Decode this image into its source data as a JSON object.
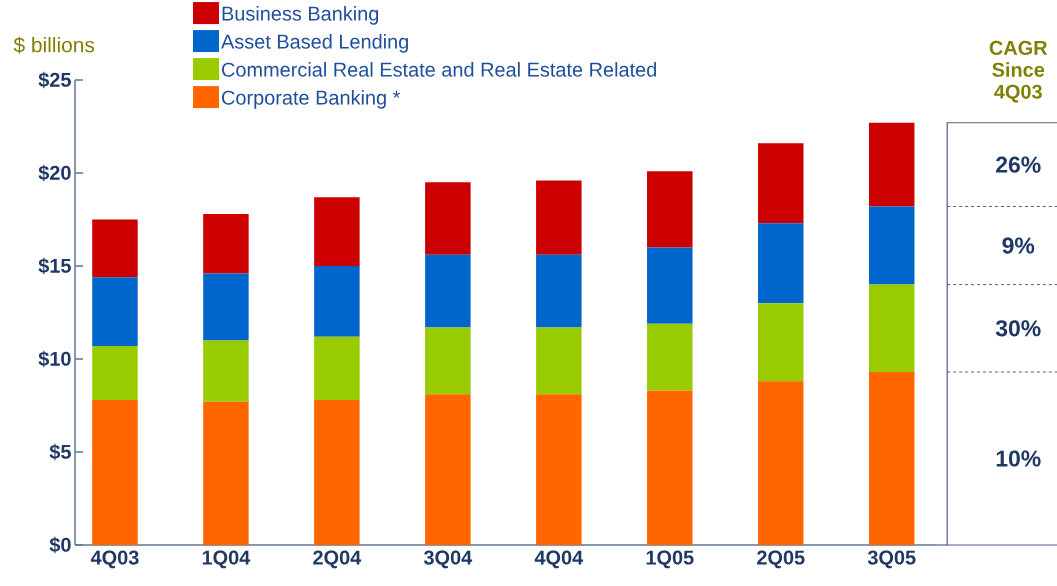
{
  "chart_data": {
    "type": "bar",
    "stacked": true,
    "ylabel": "$ billions",
    "categories": [
      "4Q03",
      "1Q04",
      "2Q04",
      "3Q04",
      "4Q04",
      "1Q05",
      "2Q05",
      "3Q05"
    ],
    "series": [
      {
        "name": "Corporate Banking *",
        "color": "#ff6600",
        "values": [
          7.8,
          7.7,
          7.8,
          8.1,
          8.1,
          8.3,
          8.8,
          9.3
        ]
      },
      {
        "name": "Commercial Real Estate and Real Estate Related",
        "color": "#99cc00",
        "values": [
          2.9,
          3.3,
          3.4,
          3.6,
          3.6,
          3.6,
          4.2,
          4.7
        ]
      },
      {
        "name": "Asset Based Lending",
        "color": "#0066cc",
        "values": [
          3.7,
          3.6,
          3.8,
          3.9,
          3.9,
          4.1,
          4.3,
          4.2
        ]
      },
      {
        "name": "Business Banking",
        "color": "#cc0000",
        "values": [
          3.1,
          3.2,
          3.7,
          3.9,
          4.0,
          4.1,
          4.3,
          4.5
        ]
      }
    ],
    "ylim": [
      0,
      25
    ],
    "yticks": [
      {
        "value": 0,
        "label": "$0"
      },
      {
        "value": 5,
        "label": "$5"
      },
      {
        "value": 10,
        "label": "$10"
      },
      {
        "value": 15,
        "label": "$15"
      },
      {
        "value": 20,
        "label": "$20"
      },
      {
        "value": 25,
        "label": "$25"
      }
    ],
    "legend": "top",
    "annotations": [
      "CAGR Since 4Q03",
      "26%",
      "9%",
      "30%",
      "10%"
    ]
  }
}
